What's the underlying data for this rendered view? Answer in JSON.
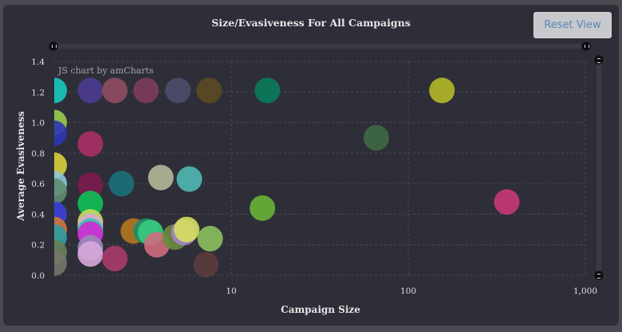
{
  "chart_data": {
    "type": "scatter",
    "title": "Size/Evasiveness For All Campaigns",
    "xlabel": "Campaign Size",
    "ylabel": "Average Evasiveness",
    "x_scale": "log",
    "xlim": [
      1,
      1000
    ],
    "ylim": [
      0,
      1.4
    ],
    "x_ticks": [
      {
        "v": 10,
        "label": "10"
      },
      {
        "v": 100,
        "label": "100"
      },
      {
        "v": 1000,
        "label": "1,000"
      }
    ],
    "y_ticks": [
      {
        "v": 0,
        "label": "0.0"
      },
      {
        "v": 0.2,
        "label": "0.2"
      },
      {
        "v": 0.4,
        "label": "0.4"
      },
      {
        "v": 0.6,
        "label": "0.6"
      },
      {
        "v": 0.8,
        "label": "0.8"
      },
      {
        "v": 1.0,
        "label": "1.0"
      },
      {
        "v": 1.2,
        "label": "1.2"
      },
      {
        "v": 1.4,
        "label": "1.4"
      }
    ],
    "grid": true,
    "credit": "JS chart by amCharts",
    "points": [
      {
        "x": 1,
        "y": 1.21,
        "color": "#18c8c0"
      },
      {
        "x": 1,
        "y": 1.0,
        "color": "#9acc4e"
      },
      {
        "x": 1,
        "y": 0.93,
        "color": "#2c35b4"
      },
      {
        "x": 1,
        "y": 0.72,
        "color": "#d8d03c"
      },
      {
        "x": 1,
        "y": 0.6,
        "color": "#8cc8d8"
      },
      {
        "x": 1,
        "y": 0.55,
        "color": "#5f8c70"
      },
      {
        "x": 1,
        "y": 0.4,
        "color": "#3c40d8"
      },
      {
        "x": 1,
        "y": 0.3,
        "color": "#d07838"
      },
      {
        "x": 1,
        "y": 0.25,
        "color": "#2c9ca4"
      },
      {
        "x": 1,
        "y": 0.15,
        "color": "#688058"
      },
      {
        "x": 1,
        "y": 0.08,
        "color": "#76766c"
      },
      {
        "x": 1.6,
        "y": 1.21,
        "color": "#4c3c90"
      },
      {
        "x": 2.2,
        "y": 1.21,
        "color": "#904c62"
      },
      {
        "x": 3.3,
        "y": 1.21,
        "color": "#7c3c5c"
      },
      {
        "x": 5.0,
        "y": 1.21,
        "color": "#4e4c6c"
      },
      {
        "x": 7.5,
        "y": 1.21,
        "color": "#5c4a24"
      },
      {
        "x": 16,
        "y": 1.21,
        "color": "#0a7c5c"
      },
      {
        "x": 155,
        "y": 1.21,
        "color": "#b4b828"
      },
      {
        "x": 1.6,
        "y": 0.86,
        "color": "#a83064"
      },
      {
        "x": 66,
        "y": 0.9,
        "color": "#3e6a44"
      },
      {
        "x": 1.6,
        "y": 0.59,
        "color": "#7c1c4c"
      },
      {
        "x": 2.4,
        "y": 0.6,
        "color": "#1a707c"
      },
      {
        "x": 4.0,
        "y": 0.64,
        "color": "#b4b898"
      },
      {
        "x": 5.8,
        "y": 0.63,
        "color": "#50b8b4"
      },
      {
        "x": 1.6,
        "y": 0.47,
        "color": "#10c058"
      },
      {
        "x": 15,
        "y": 0.44,
        "color": "#68b438"
      },
      {
        "x": 360,
        "y": 0.48,
        "color": "#c83878"
      },
      {
        "x": 1.6,
        "y": 0.35,
        "color": "#c8dc60"
      },
      {
        "x": 1.6,
        "y": 0.32,
        "color": "#d8a8d8"
      },
      {
        "x": 1.6,
        "y": 0.29,
        "color": "#28c8a8"
      },
      {
        "x": 1.6,
        "y": 0.27,
        "color": "#d428d4"
      },
      {
        "x": 1.6,
        "y": 0.18,
        "color": "#9a8ab8"
      },
      {
        "x": 1.6,
        "y": 0.14,
        "color": "#d8a8dc"
      },
      {
        "x": 2.2,
        "y": 0.11,
        "color": "#a83c6a"
      },
      {
        "x": 2.8,
        "y": 0.29,
        "color": "#b47820"
      },
      {
        "x": 3.3,
        "y": 0.29,
        "color": "#1c8c6c"
      },
      {
        "x": 3.5,
        "y": 0.28,
        "color": "#38cc80"
      },
      {
        "x": 3.8,
        "y": 0.2,
        "color": "#d06c80"
      },
      {
        "x": 4.8,
        "y": 0.25,
        "color": "#6c8c40"
      },
      {
        "x": 5.4,
        "y": 0.28,
        "color": "#a884c8"
      },
      {
        "x": 5.6,
        "y": 0.3,
        "color": "#d8e060"
      },
      {
        "x": 7.6,
        "y": 0.24,
        "color": "#8cc060"
      },
      {
        "x": 7.2,
        "y": 0.07,
        "color": "#5c3c3c"
      }
    ]
  }
}
